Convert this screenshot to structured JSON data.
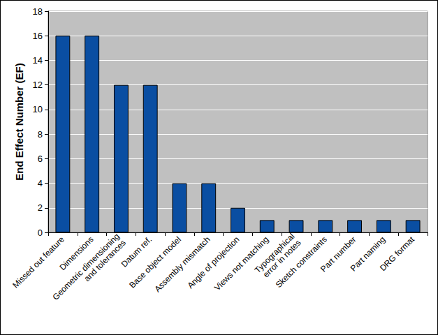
{
  "chart_data": {
    "type": "bar",
    "ylabel": "End Effect Number (EF)",
    "categories": [
      "Missed out feature",
      "Dimensions",
      "Geometric dimensioning and tolerances",
      "Datum ref.",
      "Base object model",
      "Assembly mismatch",
      "Angle of projection",
      "Views not matching",
      "Typographical error in notes",
      "Sketch constraints",
      "Part number",
      "Part naming",
      "DRG format"
    ],
    "values": [
      16,
      16,
      12,
      12,
      4,
      4,
      2,
      1,
      1,
      1,
      1,
      1,
      1
    ],
    "color": "#0a4ea2",
    "ylim": [
      0,
      18
    ],
    "yticks": [
      0,
      2,
      4,
      6,
      8,
      10,
      12,
      14,
      16,
      18
    ],
    "grid": true
  }
}
